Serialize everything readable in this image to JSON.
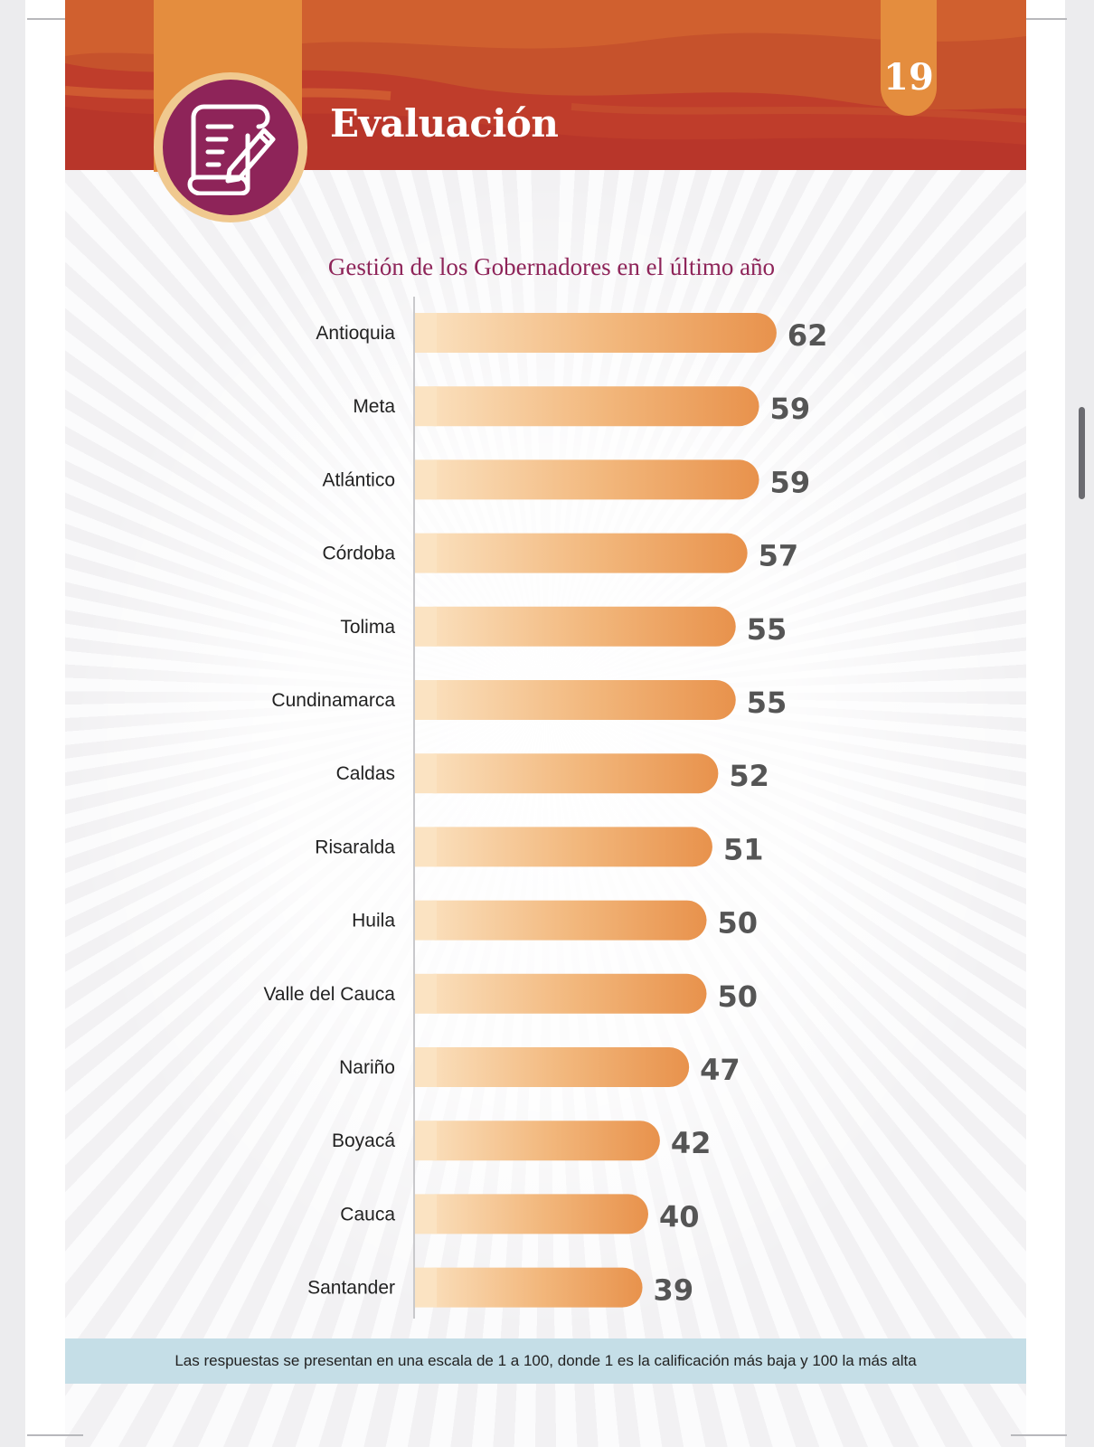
{
  "header": {
    "section_title": "Evaluación",
    "page_number": "19",
    "icon": "document-pen-icon"
  },
  "chart_data": {
    "type": "bar",
    "orientation": "horizontal",
    "title": "Gestión de los Gobernadores en el último año",
    "categories": [
      "Antioquia",
      "Meta",
      "Atlántico",
      "Córdoba",
      "Tolima",
      "Cundinamarca",
      "Caldas",
      "Risaralda",
      "Huila",
      "Valle del Cauca",
      "Nariño",
      "Boyacá",
      "Cauca",
      "Santander"
    ],
    "values": [
      62,
      59,
      59,
      57,
      55,
      55,
      52,
      51,
      50,
      50,
      47,
      42,
      40,
      39
    ],
    "grid": false,
    "legend": "none"
  },
  "footer": {
    "note": "Las respuestas se presentan en una escala de 1 a 100, donde 1 es la calificación más baja y 100 la más alta"
  },
  "colors": {
    "header_base": "#c6522c",
    "header_dark": "#b8362a",
    "accent_orange": "#e48d3e",
    "icon_circle": "#8e2459",
    "title_color": "#8e2459",
    "bar_start": "#fbe3c2",
    "bar_end": "#e8924c",
    "value_color": "#555555",
    "footer_band": "#c5dee7"
  }
}
